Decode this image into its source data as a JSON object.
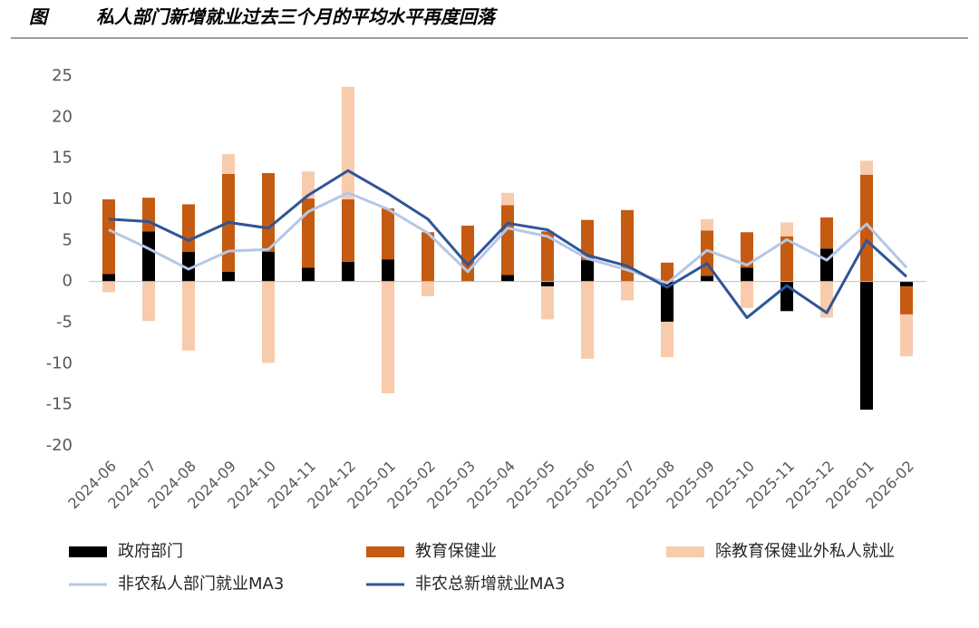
{
  "figure_label": "图",
  "chart_data": {
    "type": "bar",
    "stacked": true,
    "title": "私人部门新增就业过去三个月的平均水平再度回落",
    "categories": [
      "2024-06",
      "2024-07",
      "2024-08",
      "2024-09",
      "2024-10",
      "2024-11",
      "2024-12",
      "2025-01",
      "2025-02",
      "2025-03",
      "2025-04",
      "2025-05",
      "2025-06",
      "2025-07",
      "2025-08",
      "2025-09",
      "2025-10",
      "2025-11",
      "2025-12",
      "2026-01",
      "2026-02"
    ],
    "series": [
      {
        "name": "政府部门",
        "type": "bar",
        "color": "#000000",
        "values": [
          0.9,
          6.1,
          3.6,
          1.2,
          3.6,
          1.7,
          2.4,
          2.7,
          0,
          0,
          0.8,
          -0.6,
          2.6,
          0,
          -4.9,
          0.7,
          1.7,
          -3.6,
          4.0,
          -15.6,
          -0.6
        ]
      },
      {
        "name": "教育保健业",
        "type": "bar",
        "color": "#c55a11",
        "values": [
          9.1,
          4.1,
          5.8,
          11.9,
          9.6,
          8.4,
          7.6,
          6.2,
          6.0,
          6.8,
          8.5,
          6.1,
          4.9,
          8.7,
          2.3,
          5.5,
          4.3,
          5.5,
          3.8,
          13.0,
          -3.4
        ]
      },
      {
        "name": "除教育保健业外私人就业",
        "type": "bar",
        "color": "#f8cbad",
        "values": [
          -1.3,
          -4.8,
          -8.4,
          2.4,
          -9.9,
          3.3,
          13.7,
          -13.6,
          -1.8,
          0,
          1.5,
          -4.0,
          -9.4,
          -2.3,
          -4.3,
          1.4,
          -3.2,
          1.7,
          -4.4,
          1.7,
          -5.1
        ]
      },
      {
        "name": "非农私人部门就业MA3",
        "type": "line",
        "color": "#b4c7e7",
        "values": [
          6.3,
          4.0,
          1.5,
          3.7,
          3.9,
          8.5,
          10.8,
          8.8,
          5.9,
          1.2,
          6.5,
          5.5,
          2.8,
          1.4,
          -0.2,
          3.8,
          2.0,
          5.1,
          2.6,
          7.0,
          1.7
        ]
      },
      {
        "name": "非农总新增就业MA3",
        "type": "line",
        "color": "#2f5597",
        "values": [
          7.6,
          7.3,
          5.0,
          7.2,
          6.5,
          10.5,
          13.5,
          10.7,
          7.6,
          2.0,
          7.1,
          6.3,
          3.2,
          1.9,
          -0.7,
          2.2,
          -4.4,
          -0.5,
          -3.8,
          5.0,
          0.6
        ]
      }
    ],
    "ylim": [
      -20,
      25
    ],
    "yticks": [
      -20,
      -15,
      -10,
      -5,
      0,
      5,
      10,
      15,
      20,
      25
    ],
    "grid": false
  }
}
